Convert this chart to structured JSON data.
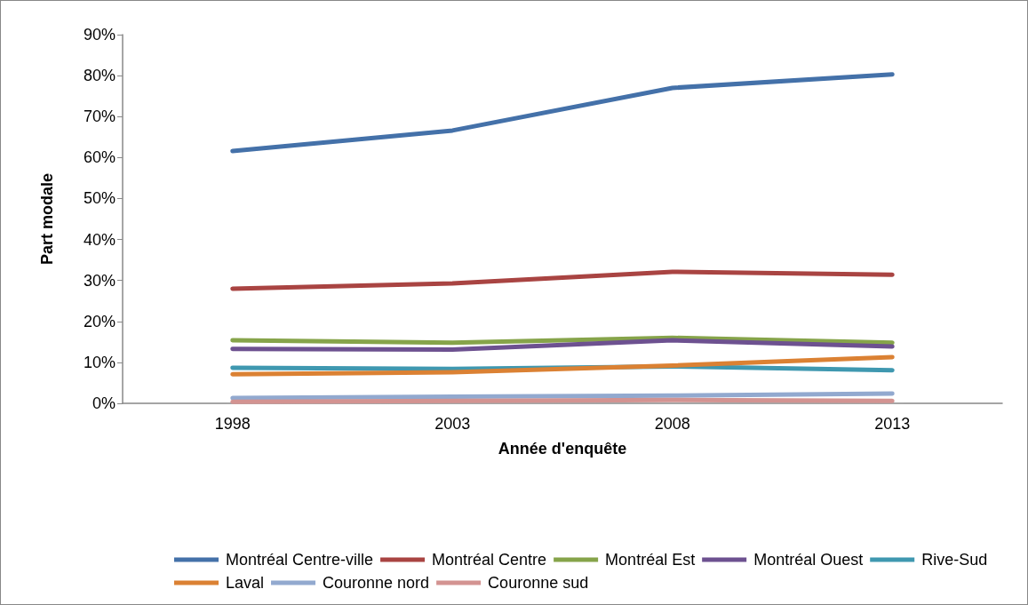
{
  "chart_data": {
    "type": "line",
    "xlabel": "Année d'enquête",
    "ylabel": "Part modale",
    "categories": [
      "1998",
      "2003",
      "2008",
      "2013"
    ],
    "ylim": [
      0,
      90
    ],
    "yticks": [
      {
        "value": 0,
        "label": "0%"
      },
      {
        "value": 10,
        "label": "10%"
      },
      {
        "value": 20,
        "label": "20%"
      },
      {
        "value": 30,
        "label": "30%"
      },
      {
        "value": 40,
        "label": "40%"
      },
      {
        "value": 50,
        "label": "50%"
      },
      {
        "value": 60,
        "label": "60%"
      },
      {
        "value": 70,
        "label": "70%"
      },
      {
        "value": 80,
        "label": "80%"
      },
      {
        "value": 90,
        "label": "90%"
      }
    ],
    "grid": false,
    "legend": "bottom",
    "marker": "none",
    "line_style": "solid",
    "series": [
      {
        "name": "Montréal Centre-ville",
        "color": "#4471a9",
        "values": [
          61.6,
          66.6,
          77.0,
          80.3
        ]
      },
      {
        "name": "Montréal Centre",
        "color": "#a94442",
        "values": [
          28.0,
          29.3,
          32.1,
          31.4
        ]
      },
      {
        "name": "Montréal Est",
        "color": "#86a44a",
        "values": [
          15.4,
          14.8,
          16.0,
          14.8
        ]
      },
      {
        "name": "Montréal Ouest",
        "color": "#6d5190",
        "values": [
          13.3,
          13.1,
          15.4,
          13.9
        ]
      },
      {
        "name": "Rive-Sud",
        "color": "#3f98b0",
        "values": [
          8.7,
          8.4,
          9.0,
          8.1
        ]
      },
      {
        "name": "Laval",
        "color": "#db8133",
        "values": [
          7.1,
          7.6,
          9.2,
          11.3
        ]
      },
      {
        "name": "Couronne nord",
        "color": "#92a9cf",
        "values": [
          1.3,
          1.6,
          1.9,
          2.4
        ]
      },
      {
        "name": "Couronne sud",
        "color": "#d39391",
        "values": [
          0.4,
          0.6,
          0.8,
          0.6
        ]
      }
    ]
  }
}
